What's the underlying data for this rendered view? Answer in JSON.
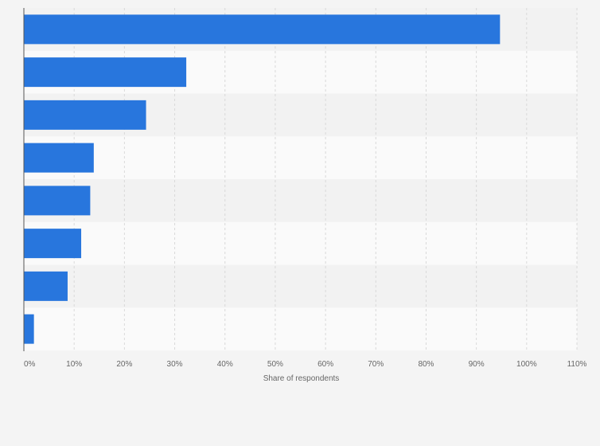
{
  "chart_data": {
    "type": "bar",
    "orientation": "horizontal",
    "title": "",
    "xlabel": "Share of respondents",
    "ylabel": "",
    "categories": [
      "",
      "",
      "",
      "",
      "",
      "",
      "",
      ""
    ],
    "values": [
      94.7,
      32.3,
      24.3,
      13.9,
      13.2,
      11.4,
      8.7,
      2.0
    ],
    "xlim": [
      0,
      110
    ],
    "xticks": [
      0,
      10,
      20,
      30,
      40,
      50,
      60,
      70,
      80,
      90,
      100,
      110
    ],
    "xtick_labels": [
      "0%",
      "10%",
      "20%",
      "30%",
      "40%",
      "50%",
      "60%",
      "70%",
      "80%",
      "90%",
      "100%",
      "110%"
    ],
    "grid": true,
    "legend": "none"
  },
  "colors": {
    "bar": "#2876dd",
    "background": "#f4f4f4",
    "band_light": "#fafafa",
    "band_dark": "#f2f2f2",
    "grid": "#d9d9d9",
    "axis": "#555555"
  }
}
